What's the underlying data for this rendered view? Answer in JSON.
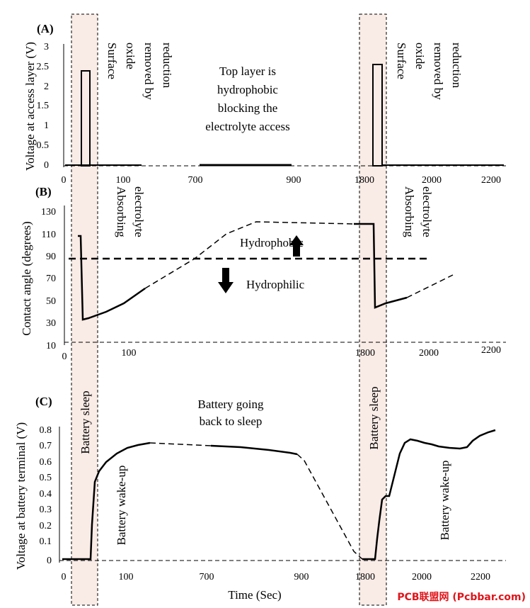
{
  "figure": {
    "watermark": "PCB联盟网 (Pcbbar.com)",
    "shade_color": "#f9ebe6",
    "x_ticks": [
      "0",
      "100",
      "700",
      "900",
      "1800",
      "2000",
      "2200"
    ]
  },
  "chart_data": [
    {
      "id": "A",
      "type": "line",
      "panel_label": "(A)",
      "ylabel": "Voltage at access layer (V)",
      "xlabel": "",
      "ylim": [
        0,
        3
      ],
      "yticks": [
        "0",
        "0.5",
        "1",
        "1.5",
        "2",
        "2.5",
        "3"
      ],
      "xticks": [
        "0",
        "100",
        "700",
        "900",
        "1800",
        "2000",
        "2200"
      ],
      "annotations": [
        "Surface oxide removed by reduction",
        "Top layer is hydrophobic blocking the electrolyte access",
        "Surface oxide removed by reduction"
      ],
      "series": [
        {
          "values": [
            [
              0,
              0
            ],
            [
              30,
              0
            ],
            [
              30,
              2.4
            ],
            [
              45,
              2.4
            ],
            [
              45,
              0
            ],
            [
              100,
              0
            ],
            [
              700,
              0
            ],
            [
              900,
              0
            ]
          ]
        },
        {
          "values": [
            [
              1800,
              0
            ],
            [
              1815,
              0
            ],
            [
              1815,
              2.55
            ],
            [
              1835,
              2.55
            ],
            [
              1835,
              0
            ],
            [
              2000,
              0
            ],
            [
              2200,
              0
            ]
          ]
        }
      ]
    },
    {
      "id": "B",
      "type": "line",
      "panel_label": "(B)",
      "ylabel": "Contact angle (degrees)",
      "xlabel": "",
      "ylim": [
        10,
        130
      ],
      "yticks": [
        "10",
        "30",
        "50",
        "70",
        "90",
        "110",
        "130"
      ],
      "xticks": [
        "0",
        "100",
        "1800",
        "2000",
        "2200"
      ],
      "annotations": [
        "Absorbing electrolyte",
        "Hydrophobic",
        "Hydrophilic",
        "Absorbing electrolyte"
      ],
      "threshold": 88,
      "series": [
        {
          "values": [
            [
              15,
              108
            ],
            [
              20,
              108
            ],
            [
              22,
              33
            ],
            [
              50,
              35
            ],
            [
              80,
              40
            ],
            [
              120,
              50
            ],
            [
              160,
              60
            ]
          ]
        },
        {
          "values": [
            [
              160,
              60
            ],
            [
              420,
              88
            ],
            [
              600,
              112
            ],
            [
              900,
              122
            ],
            [
              1700,
              120
            ],
            [
              1790,
              120
            ]
          ]
        },
        {
          "values": [
            [
              1790,
              120
            ],
            [
              1815,
              120
            ],
            [
              1825,
              43
            ],
            [
              1880,
              48
            ],
            [
              1930,
              52
            ]
          ]
        },
        {
          "values": [
            [
              1930,
              52
            ],
            [
              2100,
              73
            ]
          ]
        }
      ]
    },
    {
      "id": "C",
      "type": "line",
      "panel_label": "(C)",
      "ylabel": "Voltage at battery terminal (V)",
      "xlabel": "Time (Sec)",
      "ylim": [
        0,
        0.8
      ],
      "yticks": [
        "0",
        "0.1",
        "0.2",
        "0.3",
        "0.4",
        "0.5",
        "0.6",
        "0.7",
        "0.8"
      ],
      "xticks": [
        "0",
        "100",
        "700",
        "900",
        "1800",
        "2000",
        "2200"
      ],
      "annotations": [
        "Battery sleep",
        "Battery wake-up",
        "Battery going back to sleep",
        "Battery sleep",
        "Battery wake-up"
      ],
      "series": [
        {
          "values": [
            [
              0,
              0.01
            ],
            [
              40,
              0.01
            ],
            [
              45,
              0.45
            ],
            [
              60,
              0.55
            ],
            [
              80,
              0.62
            ],
            [
              110,
              0.68
            ],
            [
              140,
              0.7
            ],
            [
              160,
              0.71
            ]
          ]
        },
        {
          "values": [
            [
              160,
              0.71
            ],
            [
              700,
              0.7
            ]
          ]
        },
        {
          "values": [
            [
              700,
              0.7
            ],
            [
              800,
              0.68
            ],
            [
              850,
              0.66
            ],
            [
              900,
              0.645
            ]
          ]
        },
        {
          "values": [
            [
              900,
              0.645
            ],
            [
              1800,
              0.01
            ]
          ]
        },
        {
          "values": [
            [
              1800,
              0.01
            ],
            [
              1830,
              0.01
            ],
            [
              1840,
              0.2
            ],
            [
              1860,
              0.36
            ],
            [
              1880,
              0.4
            ],
            [
              1900,
              0.55
            ],
            [
              1920,
              0.65
            ],
            [
              1940,
              0.72
            ],
            [
              1960,
              0.74
            ],
            [
              2000,
              0.73
            ],
            [
              2050,
              0.7
            ],
            [
              2100,
              0.68
            ],
            [
              2150,
              0.68
            ],
            [
              2180,
              0.7
            ],
            [
              2200,
              0.74
            ],
            [
              2230,
              0.76
            ],
            [
              2260,
              0.79
            ],
            [
              2280,
              0.79
            ]
          ]
        }
      ]
    }
  ]
}
